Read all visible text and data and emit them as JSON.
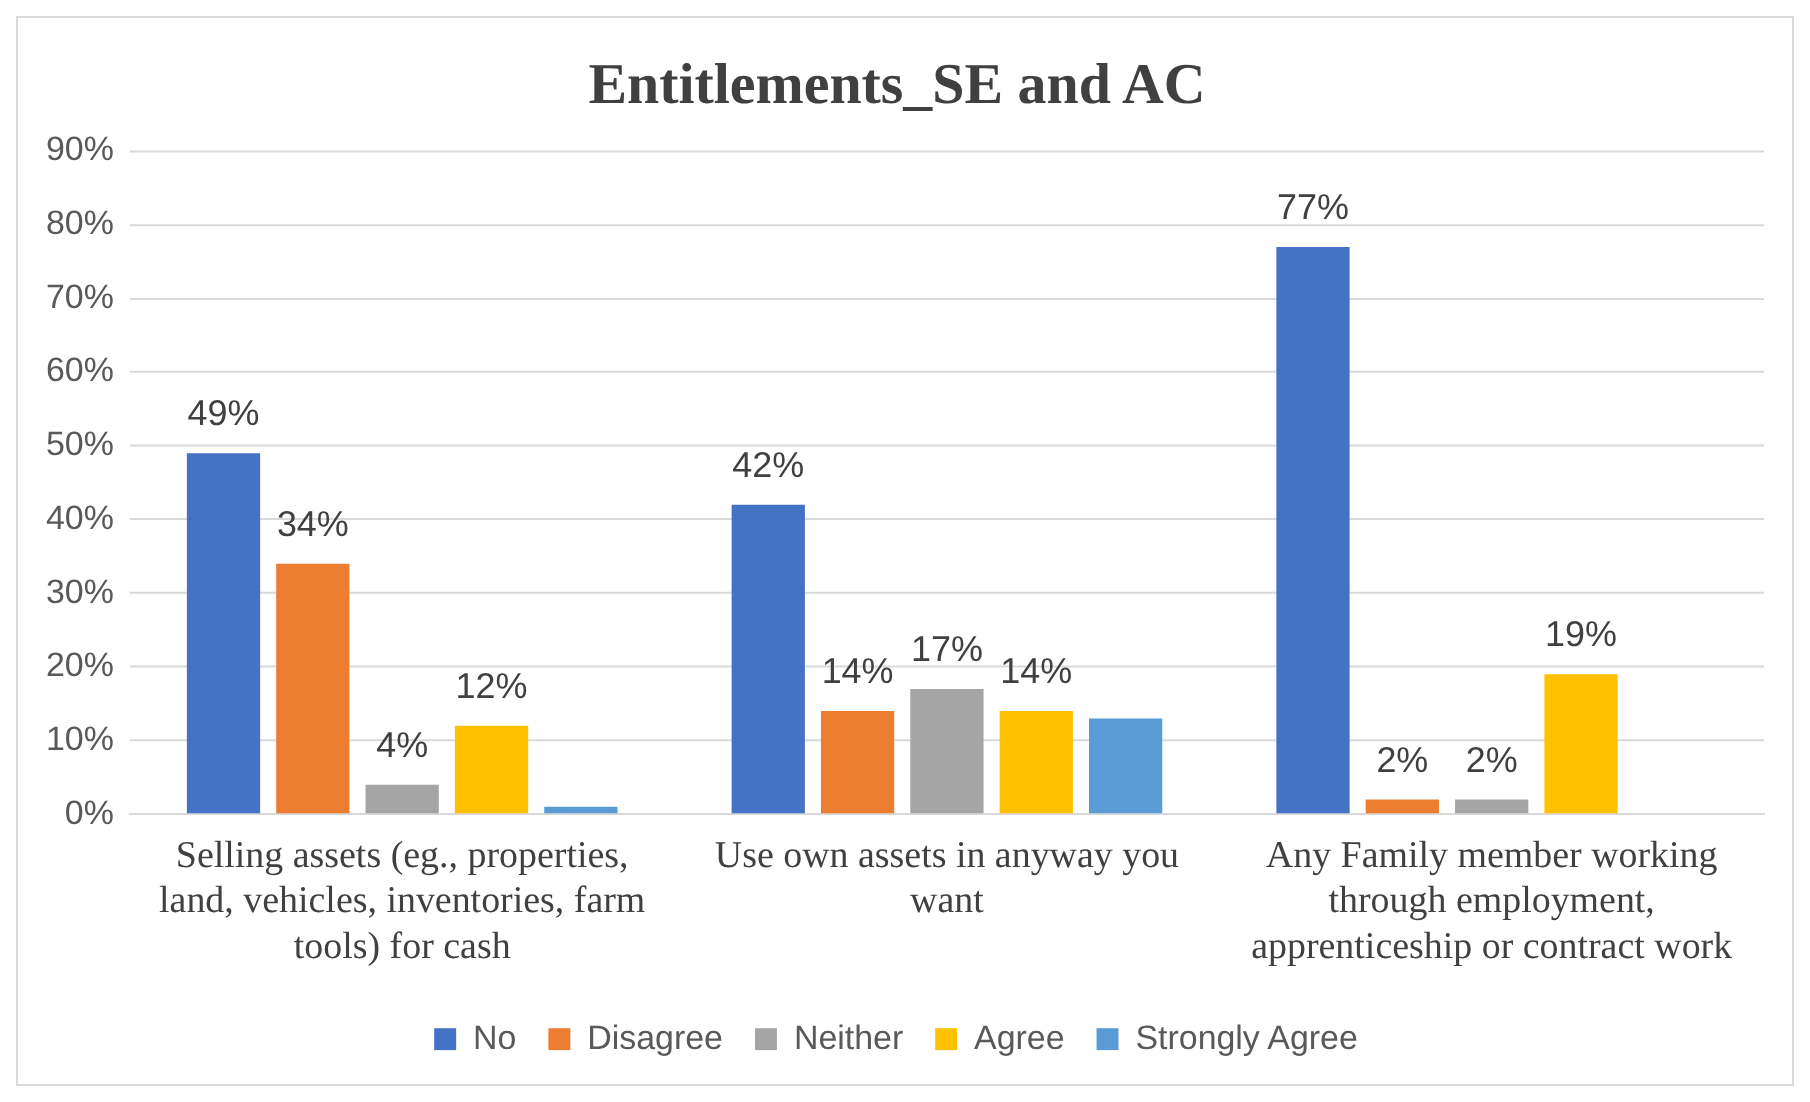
{
  "chart_data": {
    "type": "bar",
    "title": "Entitlements_SE and AC",
    "categories": [
      "Selling assets (eg., properties, land, vehicles, inventories, farm tools) for cash",
      "Use own assets in anyway you want",
      "Any Family member working through employment, apprenticeship or contract work"
    ],
    "series": [
      {
        "name": "No",
        "color": "#4472c4",
        "values": [
          49,
          42,
          77
        ],
        "value_labels": [
          "49%",
          "42%",
          "77%"
        ]
      },
      {
        "name": "Disagree",
        "color": "#ed7d31",
        "values": [
          34,
          14,
          2
        ],
        "value_labels": [
          "34%",
          "14%",
          "2%"
        ]
      },
      {
        "name": "Neither",
        "color": "#a5a5a5",
        "values": [
          4,
          17,
          2
        ],
        "value_labels": [
          "4%",
          "17%",
          "2%"
        ]
      },
      {
        "name": "Agree",
        "color": "#ffc000",
        "values": [
          12,
          14,
          19
        ],
        "value_labels": [
          "12%",
          "14%",
          "19%"
        ]
      },
      {
        "name": "Strongly Agree",
        "color": "#5b9bd5",
        "values": [
          1,
          13,
          null
        ],
        "value_labels": [
          null,
          null,
          null
        ]
      }
    ],
    "ylim": [
      0,
      90
    ],
    "yticks": [
      {
        "value": 0,
        "label": "0%"
      },
      {
        "value": 10,
        "label": "10%"
      },
      {
        "value": 20,
        "label": "20%"
      },
      {
        "value": 30,
        "label": "30%"
      },
      {
        "value": 40,
        "label": "40%"
      },
      {
        "value": 50,
        "label": "50%"
      },
      {
        "value": 60,
        "label": "60%"
      },
      {
        "value": 70,
        "label": "70%"
      },
      {
        "value": 80,
        "label": "80%"
      },
      {
        "value": 90,
        "label": "90%"
      }
    ],
    "grid": "y",
    "legend": "bottom"
  }
}
